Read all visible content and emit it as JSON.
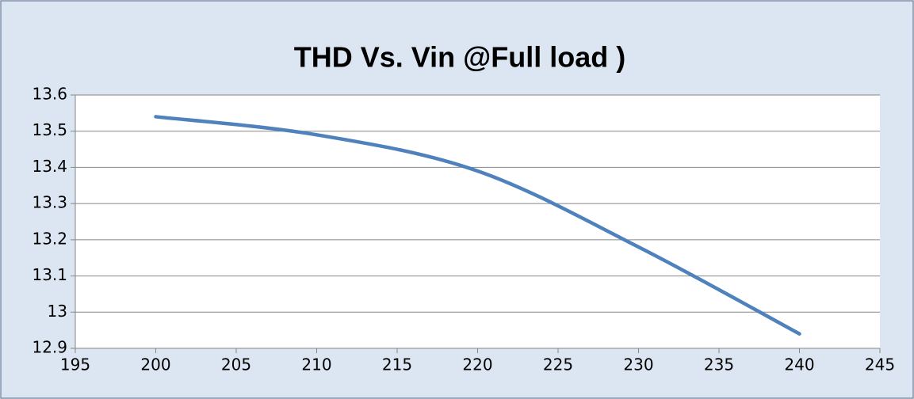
{
  "chart_data": {
    "type": "line",
    "title": "THD Vs. Vin @Full load )",
    "x": [
      200,
      210,
      220,
      230,
      240
    ],
    "series": [
      {
        "name": "THD",
        "color": "#4f81bd",
        "values": [
          13.54,
          13.49,
          13.39,
          13.18,
          12.94
        ]
      }
    ],
    "xlim": [
      195,
      245
    ],
    "xticks": [
      195,
      200,
      205,
      210,
      215,
      220,
      225,
      230,
      235,
      240,
      245
    ],
    "ylim": [
      12.9,
      13.6
    ],
    "yticks": [
      12.9,
      13,
      13.1,
      13.2,
      13.3,
      13.4,
      13.5,
      13.6
    ],
    "grid": true,
    "smooth": true
  }
}
